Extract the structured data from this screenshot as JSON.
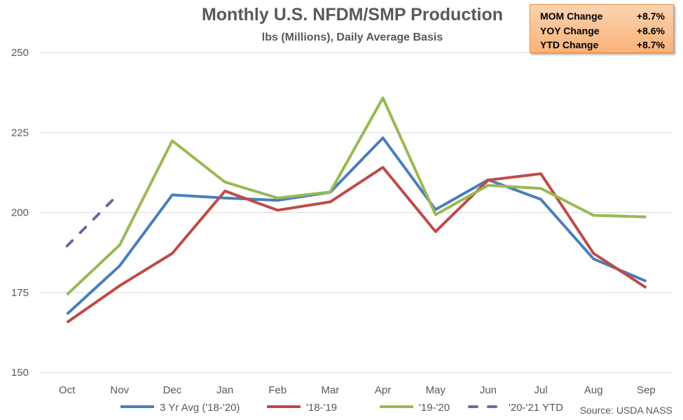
{
  "stats_box": {
    "rows": [
      {
        "label": "MOM Change",
        "value": "+8.7%"
      },
      {
        "label": "YOY Change",
        "value": "+8.6%"
      },
      {
        "label": "YTD Change",
        "value": "+8.7%"
      }
    ]
  },
  "source_text": "Source: USDA NASS",
  "chart_data": {
    "type": "line",
    "title": "Monthly U.S. NFDM/SMP Production",
    "subtitle": "lbs (Millions), Daily Average Basis",
    "categories": [
      "Oct",
      "Nov",
      "Dec",
      "Jan",
      "Feb",
      "Mar",
      "Apr",
      "May",
      "Jun",
      "Jul",
      "Aug",
      "Sep"
    ],
    "ylim": [
      150,
      250
    ],
    "yticks": [
      150,
      175,
      200,
      225,
      250
    ],
    "grid": true,
    "legend_position": "bottom",
    "series": [
      {
        "name": "3 Yr Avg ('18-'20)",
        "color": "#4a7ebb",
        "dash": false,
        "values": [
          168.2,
          183.3,
          205.5,
          204.5,
          203.8,
          206.3,
          223.3,
          200.9,
          210.2,
          204.1,
          185.5,
          178.5
        ]
      },
      {
        "name": "'18-'19",
        "color": "#be4b48",
        "dash": false,
        "values": [
          165.6,
          177.1,
          187.2,
          206.7,
          200.7,
          203.3,
          214.1,
          194.0,
          210.1,
          212.1,
          187.2,
          176.5
        ]
      },
      {
        "name": "'19-'20",
        "color": "#98b954",
        "dash": false,
        "values": [
          174.3,
          189.8,
          222.4,
          209.5,
          204.5,
          206.4,
          235.8,
          199.3,
          208.5,
          207.5,
          199.1,
          198.6
        ]
      },
      {
        "name": "'20-'21 YTD",
        "color": "#7d60a0",
        "dash": true,
        "values": [
          189.5,
          206.1,
          null,
          null,
          null,
          null,
          null,
          null,
          null,
          null,
          null,
          null
        ]
      }
    ]
  }
}
